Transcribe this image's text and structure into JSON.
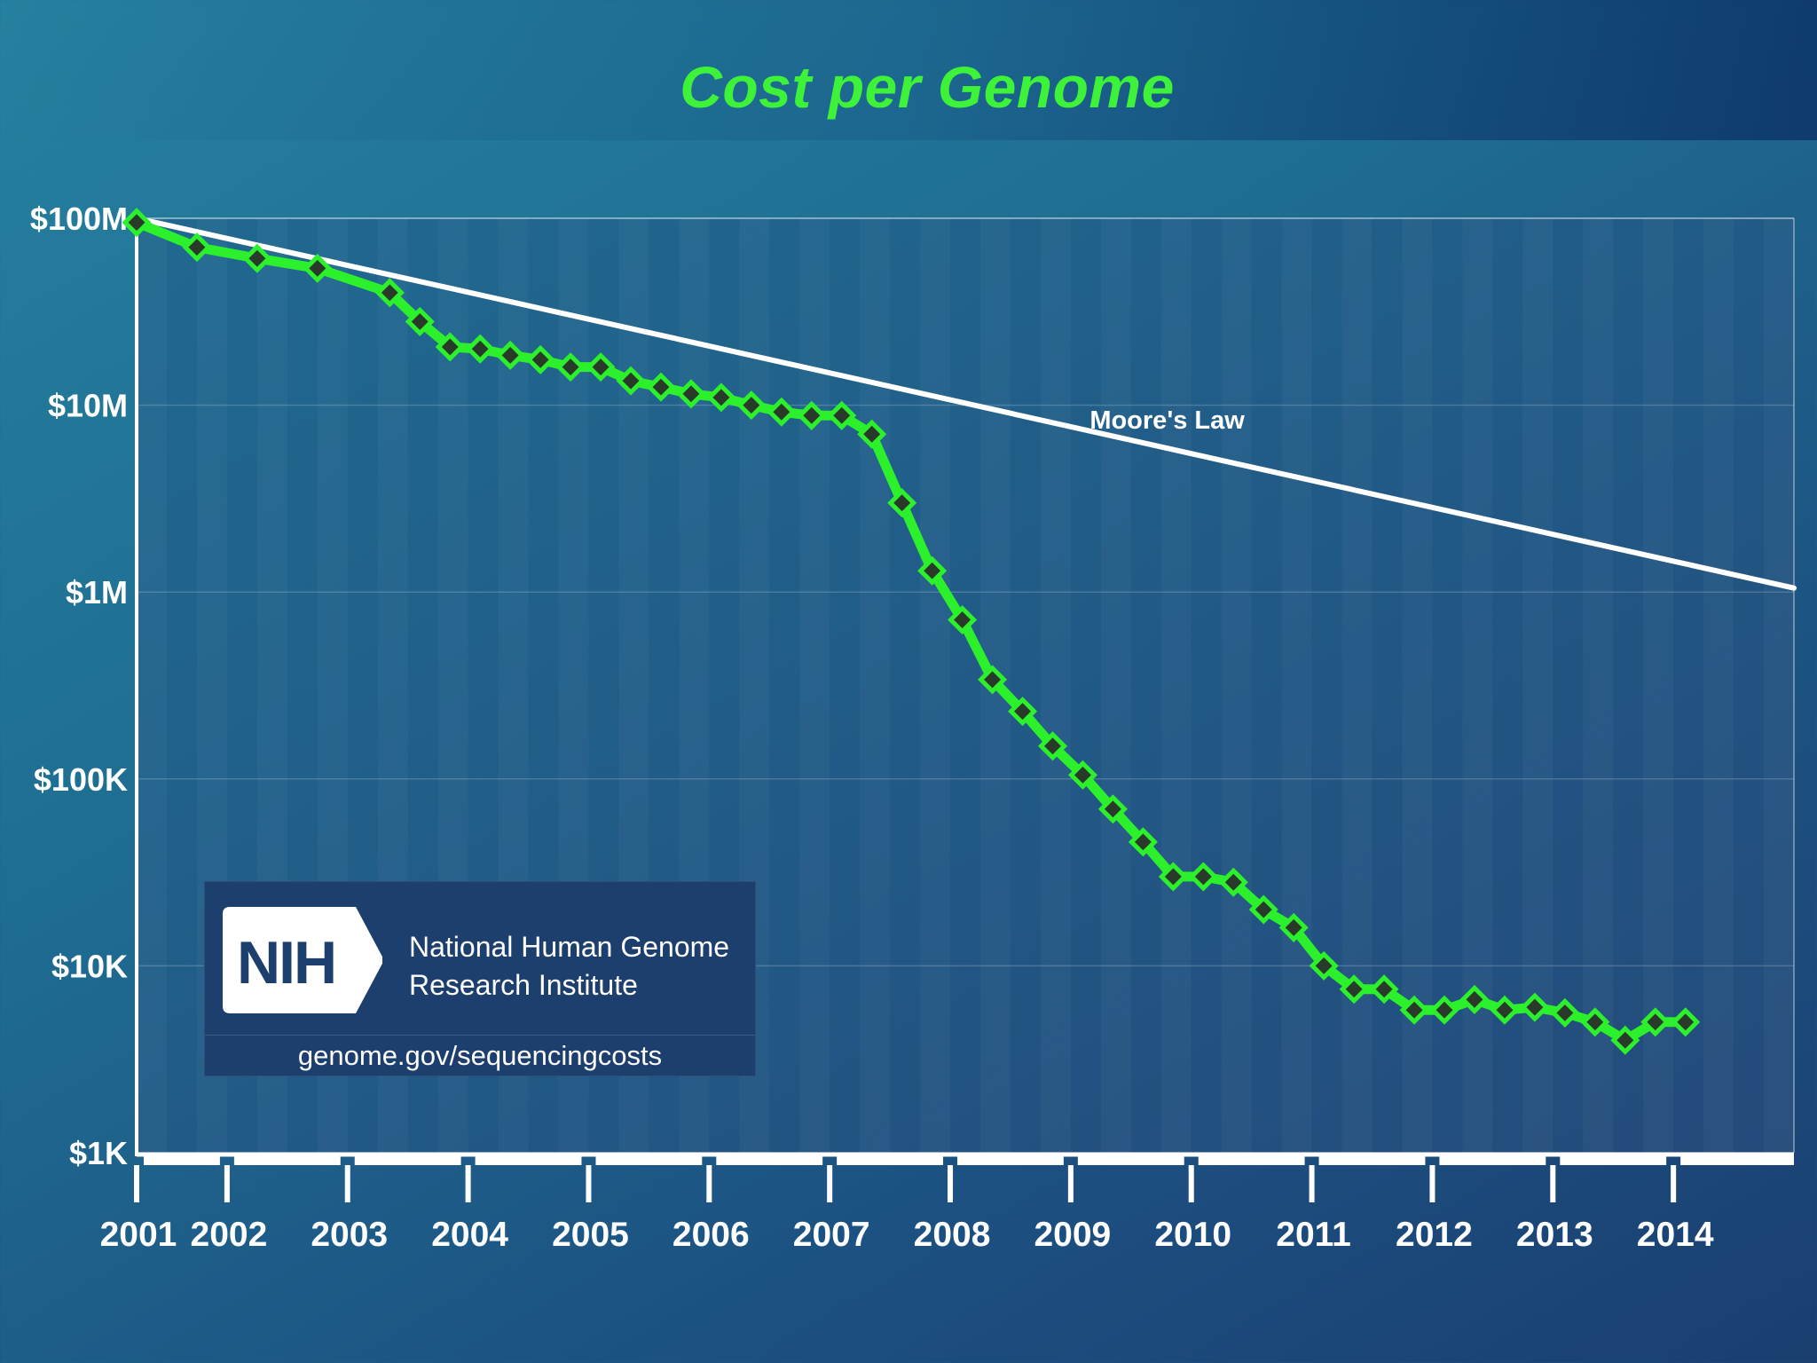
{
  "colors": {
    "series": "#2cf02c",
    "marker_fill": "#2a3a2a",
    "trend": "#ffffff",
    "title": "#3ef23a"
  },
  "chart_data": {
    "type": "line",
    "title": "Cost per Genome",
    "xlabel": "",
    "ylabel": "",
    "y_scale": "log",
    "ylim": [
      1000,
      100000000
    ],
    "xlim": [
      2001.0,
      2014.75
    ],
    "y_ticks": [
      {
        "value": 100000000,
        "label": "$100M"
      },
      {
        "value": 10000000,
        "label": "$10M"
      },
      {
        "value": 1000000,
        "label": "$1M"
      },
      {
        "value": 100000,
        "label": "$100K"
      },
      {
        "value": 10000,
        "label": "$10K"
      },
      {
        "value": 1000,
        "label": "$1K"
      }
    ],
    "x_ticks": [
      {
        "value": 2001.0,
        "label": "2001"
      },
      {
        "value": 2001.75,
        "label": "2002"
      },
      {
        "value": 2002.75,
        "label": "2003"
      },
      {
        "value": 2003.75,
        "label": "2004"
      },
      {
        "value": 2004.75,
        "label": "2005"
      },
      {
        "value": 2005.75,
        "label": "2006"
      },
      {
        "value": 2006.75,
        "label": "2007"
      },
      {
        "value": 2007.75,
        "label": "2008"
      },
      {
        "value": 2008.75,
        "label": "2009"
      },
      {
        "value": 2009.75,
        "label": "2010"
      },
      {
        "value": 2010.75,
        "label": "2011"
      },
      {
        "value": 2011.75,
        "label": "2012"
      },
      {
        "value": 2012.75,
        "label": "2013"
      },
      {
        "value": 2013.75,
        "label": "2014"
      }
    ],
    "series": [
      {
        "name": "Cost per Genome",
        "x": [
          2001.0,
          2001.5,
          2002.0,
          2002.5,
          2003.1,
          2003.35,
          2003.6,
          2003.85,
          2004.1,
          2004.35,
          2004.6,
          2004.85,
          2005.1,
          2005.35,
          2005.6,
          2005.85,
          2006.1,
          2006.35,
          2006.6,
          2006.85,
          2007.1,
          2007.35,
          2007.6,
          2007.85,
          2008.1,
          2008.35,
          2008.6,
          2008.85,
          2009.1,
          2009.35,
          2009.6,
          2009.85,
          2010.1,
          2010.35,
          2010.6,
          2010.85,
          2011.1,
          2011.35,
          2011.6,
          2011.85,
          2012.1,
          2012.35,
          2012.6,
          2012.85,
          2013.1,
          2013.35,
          2013.6,
          2013.85
        ],
        "values": [
          95000000,
          70000000,
          61000000,
          54000000,
          40000000,
          28000000,
          20500000,
          20000000,
          18500000,
          17500000,
          16000000,
          16000000,
          13500000,
          12500000,
          11500000,
          11000000,
          10000000,
          9200000,
          8800000,
          8800000,
          7000000,
          3000000,
          1300000,
          710000,
          340000,
          230000,
          150000,
          105000,
          69000,
          46000,
          30000,
          30000,
          28000,
          20000,
          16000,
          10000,
          7500,
          7500,
          5800,
          5800,
          6600,
          5800,
          6000,
          5600,
          5000,
          4000,
          5000,
          5000
        ]
      }
    ],
    "trend": {
      "name": "Moore's Law",
      "label": "Moore's Law",
      "start": {
        "x": 2001.0,
        "y": 100000000
      },
      "end": {
        "x": 2014.75,
        "y": 1050000
      }
    }
  },
  "nih": {
    "logo_text": "NIH",
    "org_line1": "National Human Genome",
    "org_line2": "Research Institute",
    "url": "genome.gov/sequencingcosts"
  }
}
